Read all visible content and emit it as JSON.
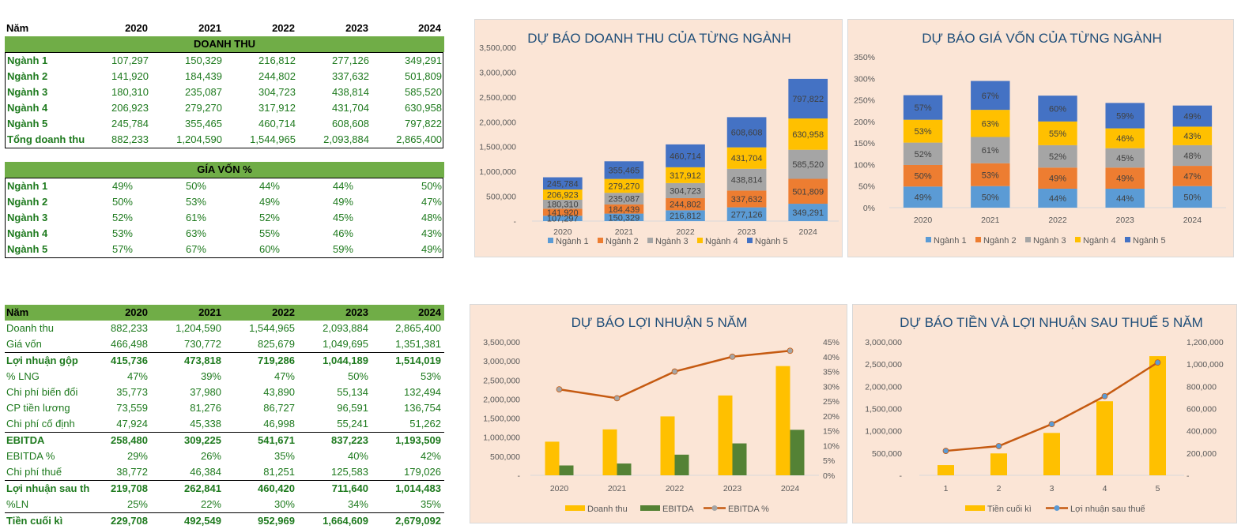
{
  "years": [
    "2020",
    "2021",
    "2022",
    "2023",
    "2024"
  ],
  "revenue_table": {
    "year_label": "Năm",
    "section_title": "DOANH THU",
    "rows": [
      {
        "label": "Ngành 1",
        "values": [
          "107,297",
          "150,329",
          "216,812",
          "277,126",
          "349,291"
        ]
      },
      {
        "label": "Ngành 2",
        "values": [
          "141,920",
          "184,439",
          "244,802",
          "337,632",
          "501,809"
        ]
      },
      {
        "label": "Ngành 3",
        "values": [
          "180,310",
          "235,087",
          "304,723",
          "438,814",
          "585,520"
        ]
      },
      {
        "label": "Ngành 4",
        "values": [
          "206,923",
          "279,270",
          "317,912",
          "431,704",
          "630,958"
        ]
      },
      {
        "label": "Ngành 5",
        "values": [
          "245,784",
          "355,465",
          "460,714",
          "608,608",
          "797,822"
        ]
      },
      {
        "label": "Tổng doanh thu",
        "values": [
          "882,233",
          "1,204,590",
          "1,544,965",
          "2,093,884",
          "2,865,400"
        ]
      }
    ]
  },
  "cogs_table": {
    "section_title": "GÍA VỐN  %",
    "rows": [
      {
        "label": "Ngành 1",
        "values": [
          "49%",
          "50%",
          "44%",
          "44%",
          "50%"
        ]
      },
      {
        "label": "Ngành 2",
        "values": [
          "50%",
          "53%",
          "49%",
          "49%",
          "47%"
        ]
      },
      {
        "label": "Ngành 3",
        "values": [
          "52%",
          "61%",
          "52%",
          "45%",
          "48%"
        ]
      },
      {
        "label": "Ngành 4",
        "values": [
          "53%",
          "63%",
          "55%",
          "46%",
          "43%"
        ]
      },
      {
        "label": "Ngành 5",
        "values": [
          "57%",
          "67%",
          "60%",
          "59%",
          "49%"
        ]
      }
    ]
  },
  "pl_table": {
    "year_label": "Năm",
    "rows": [
      {
        "label": "Doanh thu",
        "values": [
          "882,233",
          "1,204,590",
          "1,544,965",
          "2,093,884",
          "2,865,400"
        ],
        "bold": false,
        "line": false
      },
      {
        "label": "Giá vốn",
        "values": [
          "466,498",
          "730,772",
          "825,679",
          "1,049,695",
          "1,351,381"
        ],
        "bold": false,
        "line": false
      },
      {
        "label": "Lợi nhuận gộp",
        "values": [
          "415,736",
          "473,818",
          "719,286",
          "1,044,189",
          "1,514,019"
        ],
        "bold": true,
        "line": true
      },
      {
        "label": "% LNG",
        "values": [
          "47%",
          "39%",
          "47%",
          "50%",
          "53%"
        ],
        "bold": false,
        "line": false
      },
      {
        "label": "Chi phí biến đổi",
        "values": [
          "35,773",
          "37,980",
          "43,890",
          "55,134",
          "132,494"
        ],
        "bold": false,
        "line": false
      },
      {
        "label": "CP tiền lương",
        "values": [
          "73,559",
          "81,276",
          "86,727",
          "96,591",
          "136,754"
        ],
        "bold": false,
        "line": false
      },
      {
        "label": "Chi phí cố định",
        "values": [
          "47,924",
          "45,338",
          "46,998",
          "55,241",
          "51,262"
        ],
        "bold": false,
        "line": false
      },
      {
        "label": "EBITDA",
        "values": [
          "258,480",
          "309,225",
          "541,671",
          "837,223",
          "1,193,509"
        ],
        "bold": true,
        "line": true
      },
      {
        "label": "EBITDA %",
        "values": [
          "29%",
          "26%",
          "35%",
          "40%",
          "42%"
        ],
        "bold": false,
        "line": false
      },
      {
        "label": "Chi phí thuế",
        "values": [
          "38,772",
          "46,384",
          "81,251",
          "125,583",
          "179,026"
        ],
        "bold": false,
        "line": false
      },
      {
        "label": "Lợi nhuận sau th",
        "values": [
          "219,708",
          "262,841",
          "460,420",
          "711,640",
          "1,014,483"
        ],
        "bold": true,
        "line": true
      },
      {
        "label": "%LN",
        "values": [
          "25%",
          "22%",
          "30%",
          "34%",
          "35%"
        ],
        "bold": false,
        "line": false
      },
      {
        "label": "Tiền cuối kì",
        "values": [
          "229,708",
          "492,549",
          "952,969",
          "1,664,609",
          "2,679,092"
        ],
        "bold": true,
        "line": true
      }
    ]
  },
  "colors": {
    "nganh1": "#5b9bd5",
    "nganh2": "#ed7d31",
    "nganh3": "#a5a5a5",
    "nganh4": "#ffc000",
    "nganh5": "#4472c4",
    "doanh_thu": "#ffc000",
    "ebitda": "#548235",
    "line": "#c55a11",
    "marker_gray": "#a5a5a5",
    "marker_blue": "#5b9bd5",
    "chart_bg": "#fbe5d6",
    "title": "#1f4e79",
    "header_green": "#70ad47",
    "text_green": "#1e7a1e"
  },
  "chart_data": [
    {
      "type": "bar",
      "stacked": true,
      "title": "DỰ BÁO DOANH THU CỦA TỪNG NGÀNH",
      "categories": [
        "2020",
        "2021",
        "2022",
        "2023",
        "2024"
      ],
      "series": [
        {
          "name": "Ngành 1",
          "values": [
            107297,
            150329,
            216812,
            277126,
            349291
          ]
        },
        {
          "name": "Ngành 2",
          "values": [
            141920,
            184439,
            244802,
            337632,
            501809
          ]
        },
        {
          "name": "Ngành 3",
          "values": [
            180310,
            235087,
            304723,
            438814,
            585520
          ]
        },
        {
          "name": "Ngành 4",
          "values": [
            206923,
            279270,
            317912,
            431704,
            630958
          ]
        },
        {
          "name": "Ngành 5",
          "values": [
            245784,
            355465,
            460714,
            608608,
            797822
          ]
        }
      ],
      "ylim": [
        0,
        3500000
      ],
      "yticks": [
        "-",
        "500,000",
        "1,000,000",
        "1,500,000",
        "2,000,000",
        "2,500,000",
        "3,000,000",
        "3,500,000"
      ],
      "data_labels": true,
      "legend": "bottom"
    },
    {
      "type": "bar",
      "stacked": true,
      "title": "DỰ BÁO GIÁ VỐN CỦA TỪNG NGÀNH",
      "categories": [
        "2020",
        "2021",
        "2022",
        "2023",
        "2024"
      ],
      "series": [
        {
          "name": "Ngành 1",
          "values": [
            49,
            50,
            44,
            44,
            50
          ]
        },
        {
          "name": "Ngành 2",
          "values": [
            50,
            53,
            49,
            49,
            47
          ]
        },
        {
          "name": "Ngành 3",
          "values": [
            52,
            61,
            52,
            45,
            48
          ]
        },
        {
          "name": "Ngành 4",
          "values": [
            53,
            63,
            55,
            46,
            43
          ]
        },
        {
          "name": "Ngành 5",
          "values": [
            57,
            67,
            60,
            59,
            49
          ]
        }
      ],
      "value_suffix": "%",
      "ylim": [
        0,
        350
      ],
      "yticks": [
        "0%",
        "50%",
        "100%",
        "150%",
        "200%",
        "250%",
        "300%",
        "350%"
      ],
      "data_labels": true,
      "legend": "bottom"
    },
    {
      "type": "bar",
      "combo": "bar+line",
      "title": "DỰ BÁO LỢI NHUẬN 5 NĂM",
      "categories": [
        "2020",
        "2021",
        "2022",
        "2023",
        "2024"
      ],
      "series": [
        {
          "name": "Doanh thu",
          "type": "bar",
          "axis": "left",
          "values": [
            882233,
            1204590,
            1544965,
            2093884,
            2865400
          ]
        },
        {
          "name": "EBITDA",
          "type": "bar",
          "axis": "left",
          "values": [
            258480,
            309225,
            541671,
            837223,
            1193509
          ]
        },
        {
          "name": "EBITDA %",
          "type": "line",
          "axis": "right",
          "values": [
            29,
            26,
            35,
            40,
            42
          ]
        }
      ],
      "ylim": [
        0,
        3500000
      ],
      "yticks": [
        "-",
        "500,000",
        "1,000,000",
        "1,500,000",
        "2,000,000",
        "2,500,000",
        "3,000,000",
        "3,500,000"
      ],
      "y2lim": [
        0,
        45
      ],
      "y2ticks": [
        "0%",
        "5%",
        "10%",
        "15%",
        "20%",
        "25%",
        "30%",
        "35%",
        "40%",
        "45%"
      ],
      "legend": "bottom"
    },
    {
      "type": "bar",
      "combo": "bar+line",
      "title": "DỰ BÁO TIỀN VÀ LỢI NHUẬN SAU THUẾ 5 NĂM",
      "categories": [
        "1",
        "2",
        "3",
        "4",
        "5"
      ],
      "series": [
        {
          "name": "Tiền cuối kì",
          "type": "bar",
          "axis": "left",
          "values": [
            229708,
            492549,
            952969,
            1664609,
            2679092
          ]
        },
        {
          "name": "Lợi nhuận sau thuế",
          "type": "line",
          "axis": "right",
          "values": [
            219708,
            262841,
            460420,
            711640,
            1014483
          ]
        }
      ],
      "ylim": [
        0,
        3000000
      ],
      "yticks": [
        "-",
        "500,000",
        "1,000,000",
        "1,500,000",
        "2,000,000",
        "2,500,000",
        "3,000,000"
      ],
      "y2lim": [
        0,
        1200000
      ],
      "y2ticks": [
        "-",
        "200,000",
        "400,000",
        "600,000",
        "800,000",
        "1,000,000",
        "1,200,000"
      ],
      "legend": "bottom"
    }
  ]
}
